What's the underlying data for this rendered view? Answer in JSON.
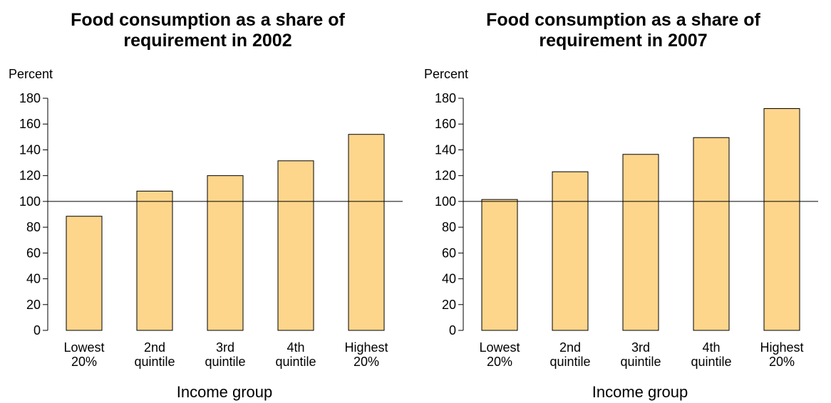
{
  "chart_data": [
    {
      "type": "bar",
      "title_lines": [
        "Food consumption as a share of",
        "requirement in 2002"
      ],
      "ylabel": "Percent",
      "xlabel": "Income group",
      "ylim": [
        0,
        180
      ],
      "yticks": [
        0,
        20,
        40,
        60,
        80,
        100,
        120,
        140,
        160,
        180
      ],
      "reference_line": 100,
      "bar_color": "#fdd68c",
      "categories": [
        [
          "Lowest",
          "20%"
        ],
        [
          "2nd",
          "quintile"
        ],
        [
          "3rd",
          "quintile"
        ],
        [
          "4th",
          "quintile"
        ],
        [
          "Highest",
          "20%"
        ]
      ],
      "values": [
        88.5,
        108,
        120,
        131.5,
        152
      ]
    },
    {
      "type": "bar",
      "title_lines": [
        "Food consumption as a share of",
        "requirement in 2007"
      ],
      "ylabel": "Percent",
      "xlabel": "Income group",
      "ylim": [
        0,
        180
      ],
      "yticks": [
        0,
        20,
        40,
        60,
        80,
        100,
        120,
        140,
        160,
        180
      ],
      "reference_line": 100,
      "bar_color": "#fdd68c",
      "categories": [
        [
          "Lowest",
          "20%"
        ],
        [
          "2nd",
          "quintile"
        ],
        [
          "3rd",
          "quintile"
        ],
        [
          "4th",
          "quintile"
        ],
        [
          "Highest",
          "20%"
        ]
      ],
      "values": [
        101.5,
        123,
        136.5,
        149.5,
        172
      ]
    }
  ]
}
